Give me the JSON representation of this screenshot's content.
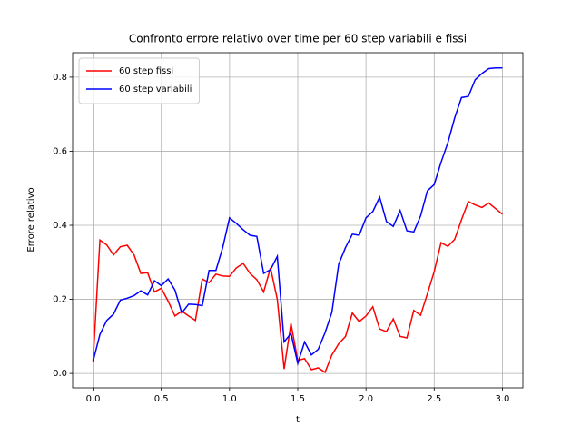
{
  "chart_data": {
    "type": "line",
    "title": "Confronto errore relativo over time per 60 step variabili e fissi",
    "x_label": "t",
    "y_label": "Errore relativo",
    "x": [
      0,
      0.05,
      0.1,
      0.15,
      0.2,
      0.25,
      0.3,
      0.35,
      0.4,
      0.45,
      0.5,
      0.55,
      0.6,
      0.65,
      0.7,
      0.75,
      0.8,
      0.85,
      0.9,
      0.95,
      1.0,
      1.05,
      1.1,
      1.15,
      1.2,
      1.25,
      1.3,
      1.35,
      1.4,
      1.45,
      1.5,
      1.55,
      1.6,
      1.65,
      1.7,
      1.75,
      1.8,
      1.85,
      1.9,
      1.95,
      2.0,
      2.05,
      2.1,
      2.15,
      2.2,
      2.25,
      2.3,
      2.35,
      2.4,
      2.45,
      2.5,
      2.55,
      2.6,
      2.65,
      2.7,
      2.75,
      2.8,
      2.85,
      2.9,
      2.95,
      3.0
    ],
    "series": [
      {
        "name": "60 step fissi",
        "color": "#ff0000",
        "values": [
          0.033,
          0.36,
          0.347,
          0.32,
          0.342,
          0.346,
          0.32,
          0.27,
          0.272,
          0.22,
          0.23,
          0.195,
          0.155,
          0.168,
          0.155,
          0.143,
          0.255,
          0.245,
          0.268,
          0.263,
          0.262,
          0.285,
          0.297,
          0.27,
          0.253,
          0.22,
          0.285,
          0.2,
          0.012,
          0.135,
          0.035,
          0.04,
          0.01,
          0.015,
          0.003,
          0.05,
          0.08,
          0.1,
          0.163,
          0.14,
          0.155,
          0.18,
          0.12,
          0.113,
          0.147,
          0.1,
          0.096,
          0.17,
          0.157,
          0.215,
          0.275,
          0.353,
          0.343,
          0.362,
          0.415,
          0.464,
          0.455,
          0.448,
          0.46,
          0.445,
          0.43
        ]
      },
      {
        "name": "60 step variabili",
        "color": "#0000ff",
        "values": [
          0.033,
          0.105,
          0.143,
          0.16,
          0.198,
          0.203,
          0.21,
          0.223,
          0.212,
          0.25,
          0.237,
          0.255,
          0.225,
          0.163,
          0.187,
          0.186,
          0.183,
          0.278,
          0.278,
          0.34,
          0.42,
          0.405,
          0.388,
          0.373,
          0.37,
          0.27,
          0.28,
          0.316,
          0.085,
          0.108,
          0.027,
          0.085,
          0.05,
          0.065,
          0.11,
          0.165,
          0.295,
          0.34,
          0.376,
          0.373,
          0.42,
          0.437,
          0.476,
          0.41,
          0.397,
          0.44,
          0.385,
          0.382,
          0.425,
          0.493,
          0.51,
          0.57,
          0.623,
          0.69,
          0.745,
          0.748,
          0.793,
          0.81,
          0.823,
          0.825,
          0.825
        ]
      }
    ],
    "xlim": [
      -0.15,
      3.15
    ],
    "ylim": [
      -0.039,
      0.866
    ],
    "xticks": [
      {
        "value": 0,
        "label": "0.0"
      },
      0.5,
      {
        "value": 1,
        "label": "1.0"
      },
      1.5,
      {
        "value": 2,
        "label": "2.0"
      },
      2.5,
      {
        "value": 3,
        "label": "3.0"
      }
    ],
    "yticks": [
      {
        "value": 0,
        "label": "0.0"
      },
      0.2,
      0.4,
      0.6,
      0.8
    ],
    "grid": true,
    "legend": "upper left"
  }
}
